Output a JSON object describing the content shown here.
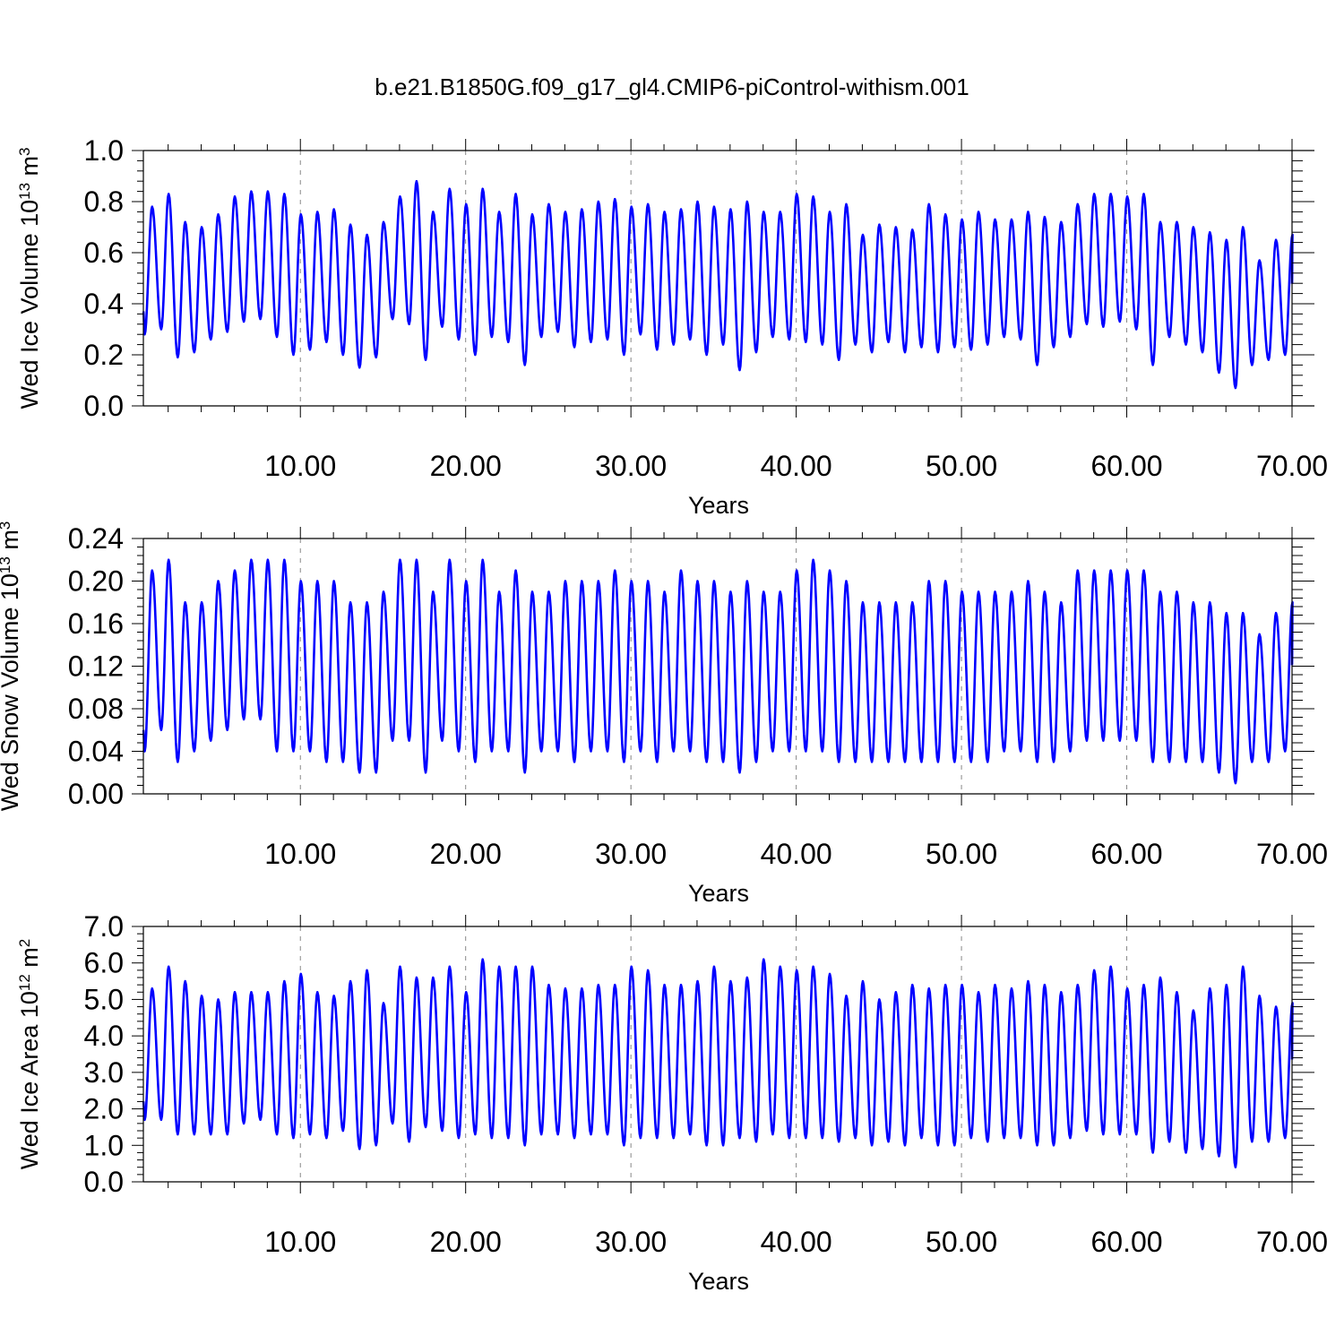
{
  "figure": {
    "title": "b.e21.B1850G.f09_g17_gl4.CMIP6-piControl-withism.001"
  },
  "chart_data": [
    {
      "type": "line",
      "name": "ice-volume",
      "ylabel": {
        "main": "Wed Ice Volume 10",
        "exp": "13",
        "unit": " m",
        "unitexp": "3"
      },
      "xlabel": "Years",
      "xlim": [
        0.5,
        70
      ],
      "ylim": [
        0,
        1.0
      ],
      "xticks": [
        10,
        20,
        30,
        40,
        50,
        60,
        70
      ],
      "xtick_labels": [
        "10.00",
        "20.00",
        "30.00",
        "40.00",
        "50.00",
        "60.00",
        "70.00"
      ],
      "yticks": [
        0,
        0.2,
        0.4,
        0.6,
        0.8,
        1.0
      ],
      "ytick_labels": [
        "0.0",
        "0.2",
        "0.4",
        "0.6",
        "0.8",
        "1.0"
      ],
      "grid": "vertical dashed at major x ticks",
      "color": "#0000ff",
      "start_value": 0.37,
      "annual_max": [
        0.78,
        0.83,
        0.72,
        0.7,
        0.75,
        0.82,
        0.84,
        0.84,
        0.83,
        0.75,
        0.76,
        0.77,
        0.71,
        0.67,
        0.72,
        0.82,
        0.88,
        0.76,
        0.85,
        0.79,
        0.85,
        0.76,
        0.83,
        0.75,
        0.79,
        0.76,
        0.77,
        0.8,
        0.81,
        0.78,
        0.79,
        0.76,
        0.77,
        0.8,
        0.78,
        0.77,
        0.8,
        0.76,
        0.76,
        0.83,
        0.82,
        0.76,
        0.79,
        0.67,
        0.71,
        0.7,
        0.69,
        0.79,
        0.75,
        0.73,
        0.76,
        0.73,
        0.73,
        0.76,
        0.74,
        0.72,
        0.79,
        0.83,
        0.83,
        0.82,
        0.83,
        0.72,
        0.72,
        0.7,
        0.68,
        0.65,
        0.7,
        0.57,
        0.65,
        0.67
      ],
      "annual_min": [
        0.28,
        0.3,
        0.19,
        0.21,
        0.26,
        0.29,
        0.33,
        0.34,
        0.27,
        0.2,
        0.22,
        0.25,
        0.2,
        0.15,
        0.19,
        0.34,
        0.32,
        0.18,
        0.31,
        0.26,
        0.2,
        0.27,
        0.25,
        0.16,
        0.27,
        0.29,
        0.23,
        0.25,
        0.26,
        0.2,
        0.28,
        0.22,
        0.24,
        0.26,
        0.2,
        0.24,
        0.14,
        0.21,
        0.27,
        0.26,
        0.25,
        0.24,
        0.18,
        0.24,
        0.21,
        0.25,
        0.21,
        0.23,
        0.21,
        0.23,
        0.22,
        0.24,
        0.27,
        0.26,
        0.16,
        0.23,
        0.27,
        0.32,
        0.31,
        0.33,
        0.3,
        0.16,
        0.27,
        0.24,
        0.21,
        0.13,
        0.07,
        0.16,
        0.18,
        0.2
      ]
    },
    {
      "type": "line",
      "name": "snow-volume",
      "ylabel": {
        "main": "Wed Snow Volume 10",
        "exp": "13",
        "unit": " m",
        "unitexp": "3"
      },
      "xlabel": "Years",
      "xlim": [
        0.5,
        70
      ],
      "ylim": [
        0,
        0.24
      ],
      "xticks": [
        10,
        20,
        30,
        40,
        50,
        60,
        70
      ],
      "xtick_labels": [
        "10.00",
        "20.00",
        "30.00",
        "40.00",
        "50.00",
        "60.00",
        "70.00"
      ],
      "yticks": [
        0,
        0.04,
        0.08,
        0.12,
        0.16,
        0.2,
        0.24
      ],
      "ytick_labels": [
        "0.00",
        "0.04",
        "0.08",
        "0.12",
        "0.16",
        "0.20",
        "0.24"
      ],
      "grid": "vertical dashed at major x ticks",
      "color": "#0000ff",
      "start_value": 0.06,
      "annual_max": [
        0.21,
        0.22,
        0.18,
        0.18,
        0.2,
        0.21,
        0.22,
        0.22,
        0.22,
        0.2,
        0.2,
        0.2,
        0.18,
        0.18,
        0.19,
        0.22,
        0.22,
        0.19,
        0.22,
        0.2,
        0.22,
        0.19,
        0.21,
        0.19,
        0.19,
        0.2,
        0.2,
        0.2,
        0.21,
        0.2,
        0.2,
        0.19,
        0.21,
        0.2,
        0.2,
        0.19,
        0.2,
        0.19,
        0.19,
        0.21,
        0.22,
        0.21,
        0.2,
        0.18,
        0.18,
        0.18,
        0.18,
        0.2,
        0.2,
        0.19,
        0.19,
        0.19,
        0.19,
        0.2,
        0.19,
        0.18,
        0.21,
        0.21,
        0.21,
        0.21,
        0.21,
        0.19,
        0.19,
        0.18,
        0.18,
        0.17,
        0.17,
        0.15,
        0.17,
        0.18
      ],
      "annual_min": [
        0.04,
        0.06,
        0.03,
        0.04,
        0.05,
        0.06,
        0.07,
        0.07,
        0.04,
        0.04,
        0.04,
        0.03,
        0.03,
        0.02,
        0.02,
        0.05,
        0.05,
        0.02,
        0.05,
        0.04,
        0.03,
        0.04,
        0.04,
        0.02,
        0.04,
        0.04,
        0.03,
        0.04,
        0.04,
        0.03,
        0.04,
        0.03,
        0.04,
        0.04,
        0.03,
        0.03,
        0.02,
        0.03,
        0.04,
        0.04,
        0.04,
        0.04,
        0.03,
        0.03,
        0.03,
        0.03,
        0.03,
        0.03,
        0.03,
        0.03,
        0.03,
        0.03,
        0.04,
        0.04,
        0.03,
        0.03,
        0.04,
        0.05,
        0.05,
        0.05,
        0.05,
        0.03,
        0.03,
        0.03,
        0.03,
        0.02,
        0.01,
        0.03,
        0.03,
        0.04
      ]
    },
    {
      "type": "line",
      "name": "ice-area",
      "ylabel": {
        "main": "Wed Ice Area 10",
        "exp": "12",
        "unit": " m",
        "unitexp": "2"
      },
      "xlabel": "Years",
      "xlim": [
        0.5,
        70
      ],
      "ylim": [
        0,
        7.0
      ],
      "xticks": [
        10,
        20,
        30,
        40,
        50,
        60,
        70
      ],
      "xtick_labels": [
        "10.00",
        "20.00",
        "30.00",
        "40.00",
        "50.00",
        "60.00",
        "70.00"
      ],
      "yticks": [
        0,
        1,
        2,
        3,
        4,
        5,
        6,
        7
      ],
      "ytick_labels": [
        "0.0",
        "1.0",
        "2.0",
        "3.0",
        "4.0",
        "5.0",
        "6.0",
        "7.0"
      ],
      "grid": "vertical dashed at major x ticks",
      "color": "#0000ff",
      "start_value": 2.2,
      "annual_max": [
        5.3,
        5.9,
        5.5,
        5.1,
        5.0,
        5.2,
        5.2,
        5.2,
        5.5,
        5.7,
        5.2,
        5.1,
        5.5,
        5.8,
        4.9,
        5.9,
        5.6,
        5.6,
        5.9,
        5.2,
        6.1,
        5.9,
        5.9,
        5.9,
        5.4,
        5.3,
        5.3,
        5.4,
        5.4,
        5.9,
        5.8,
        5.4,
        5.4,
        5.5,
        5.9,
        5.5,
        5.6,
        6.1,
        5.9,
        5.8,
        5.9,
        5.7,
        5.1,
        5.5,
        5.0,
        5.2,
        5.4,
        5.3,
        5.4,
        5.4,
        5.2,
        5.4,
        5.3,
        5.5,
        5.4,
        5.2,
        5.4,
        5.8,
        5.9,
        5.3,
        5.4,
        5.6,
        5.2,
        4.7,
        5.3,
        5.4,
        5.9,
        5.1,
        4.8,
        4.9
      ],
      "annual_min": [
        1.7,
        1.7,
        1.3,
        1.3,
        1.3,
        1.3,
        1.6,
        1.7,
        1.3,
        1.2,
        1.3,
        1.2,
        1.4,
        0.9,
        1.0,
        1.6,
        1.1,
        1.5,
        1.4,
        1.2,
        1.3,
        1.2,
        1.2,
        1.0,
        1.3,
        1.3,
        1.2,
        1.3,
        1.3,
        1.0,
        1.2,
        1.2,
        1.2,
        1.3,
        1.0,
        1.0,
        1.2,
        1.1,
        1.3,
        1.2,
        1.2,
        1.2,
        1.1,
        1.2,
        1.0,
        1.1,
        1.0,
        1.2,
        1.0,
        1.0,
        1.2,
        1.1,
        1.2,
        1.2,
        1.0,
        1.0,
        1.2,
        1.4,
        1.3,
        1.3,
        1.3,
        0.8,
        1.1,
        0.8,
        0.9,
        0.7,
        0.4,
        1.1,
        1.1,
        1.2
      ]
    }
  ]
}
